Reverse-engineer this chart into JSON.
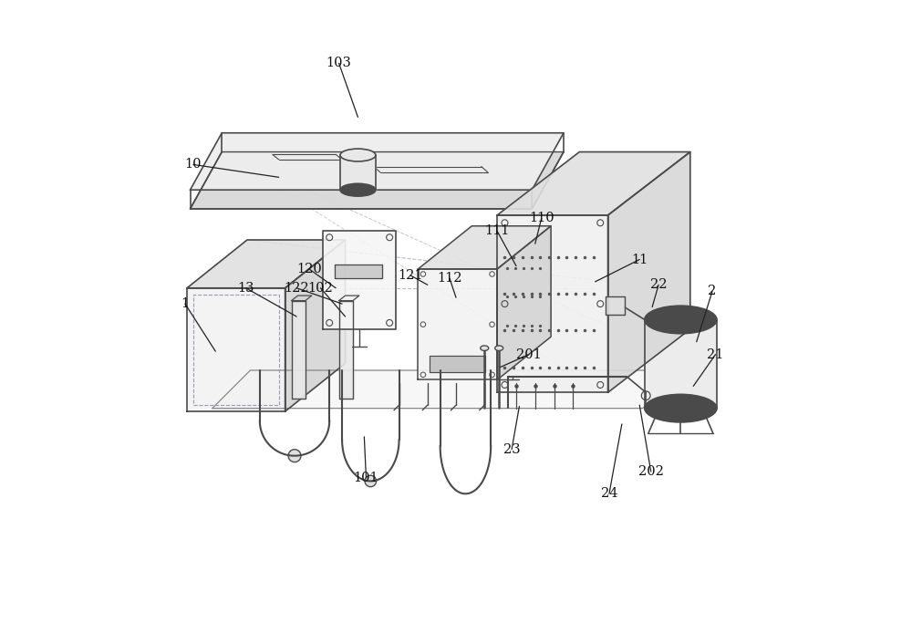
{
  "bg_color": "#ffffff",
  "line_color": "#4a4a4a",
  "light_line": "#888888",
  "dashed_color": "#aaaaaa",
  "figsize": [
    10.0,
    6.94
  ]
}
